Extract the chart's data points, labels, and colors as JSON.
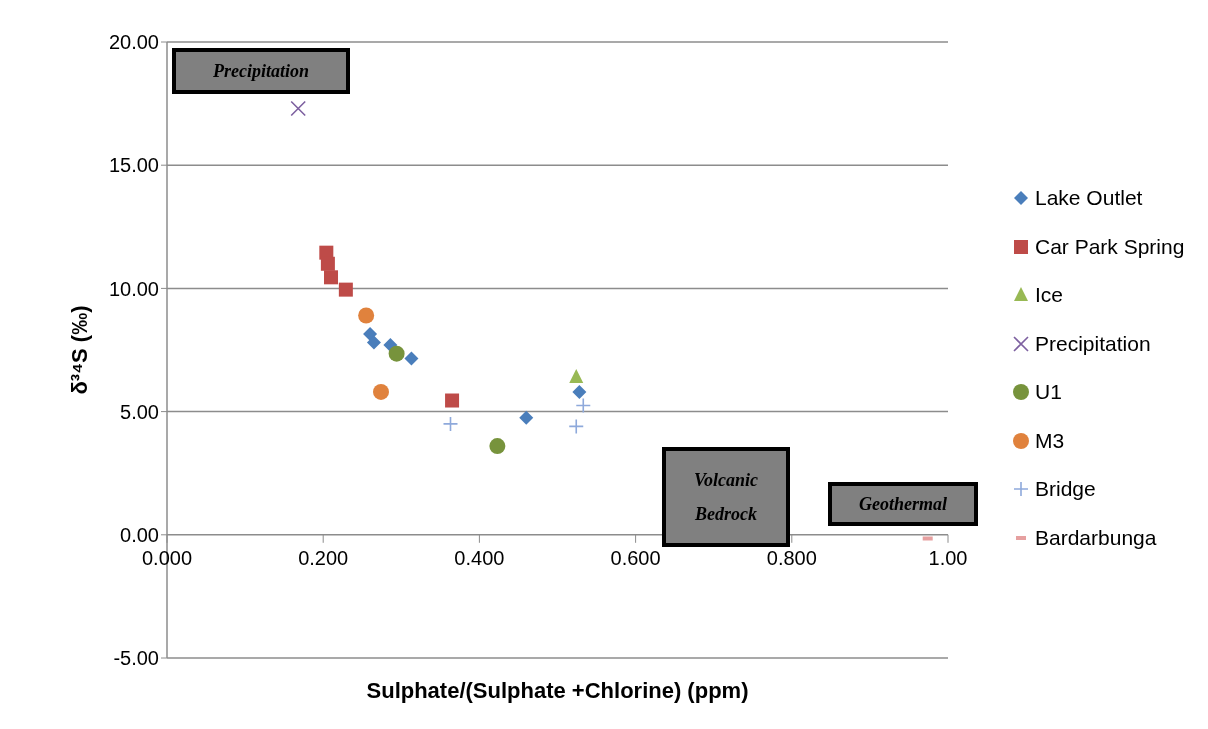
{
  "chart_data": {
    "type": "scatter",
    "xlabel": "Sulphate/(Sulphate +Chlorine) (ppm)",
    "ylabel": "δ³⁴S (‰)",
    "xlim": [
      0,
      1
    ],
    "xticks": [
      {
        "value": 0,
        "label": "0.000"
      },
      {
        "value": 0.2,
        "label": "0.200"
      },
      {
        "value": 0.4,
        "label": "0.400"
      },
      {
        "value": 0.6,
        "label": "0.600"
      },
      {
        "value": 0.8,
        "label": "0.800"
      },
      {
        "value": 1,
        "label": "1.00"
      }
    ],
    "ylim": [
      -5,
      20
    ],
    "yticks": [
      {
        "value": -5,
        "label": "-5.00"
      },
      {
        "value": 0,
        "label": "0.00"
      },
      {
        "value": 5,
        "label": "5.00"
      },
      {
        "value": 10,
        "label": "10.00"
      },
      {
        "value": 15,
        "label": "15.00"
      },
      {
        "value": 20,
        "label": "20.00"
      }
    ],
    "grid": "y",
    "legend": "right",
    "annotations": [
      "Precipitation",
      "Volcanic Bedrock",
      "Geothermal"
    ],
    "series": [
      {
        "name": "Lake Outlet",
        "color": "#4a7ebb",
        "marker": "diamond",
        "x": [
          0.26,
          0.265,
          0.286,
          0.313,
          0.46,
          0.528
        ],
        "values": [
          8.15,
          7.8,
          7.7,
          7.15,
          4.75,
          5.8
        ]
      },
      {
        "name": "Car Park Spring",
        "color": "#be4b48",
        "marker": "square",
        "x": [
          0.204,
          0.206,
          0.21,
          0.229,
          0.365
        ],
        "values": [
          11.45,
          11.0,
          10.45,
          9.95,
          5.45
        ]
      },
      {
        "name": "Ice",
        "color": "#98b954",
        "marker": "triangle",
        "x": [
          0.524
        ],
        "values": [
          6.4
        ]
      },
      {
        "name": "Precipitation",
        "color": "#7d60a0",
        "marker": "cross",
        "x": [
          0.168
        ],
        "values": [
          17.3
        ]
      },
      {
        "name": "U1",
        "color": "#77933c",
        "marker": "circle",
        "x": [
          0.294,
          0.423
        ],
        "values": [
          7.35,
          3.6
        ]
      },
      {
        "name": "M3",
        "color": "#e0823d",
        "marker": "circle",
        "x": [
          0.255,
          0.274
        ],
        "values": [
          8.9,
          5.8
        ]
      },
      {
        "name": "Bridge",
        "color": "#8ea9db",
        "marker": "plus",
        "x": [
          0.363,
          0.533,
          0.524
        ],
        "values": [
          4.5,
          5.25,
          4.4
        ]
      },
      {
        "name": "Bardarbunga",
        "color": "#e6a0a0",
        "x": [
          0.974
        ],
        "values": [
          -0.15
        ]
      }
    ]
  }
}
